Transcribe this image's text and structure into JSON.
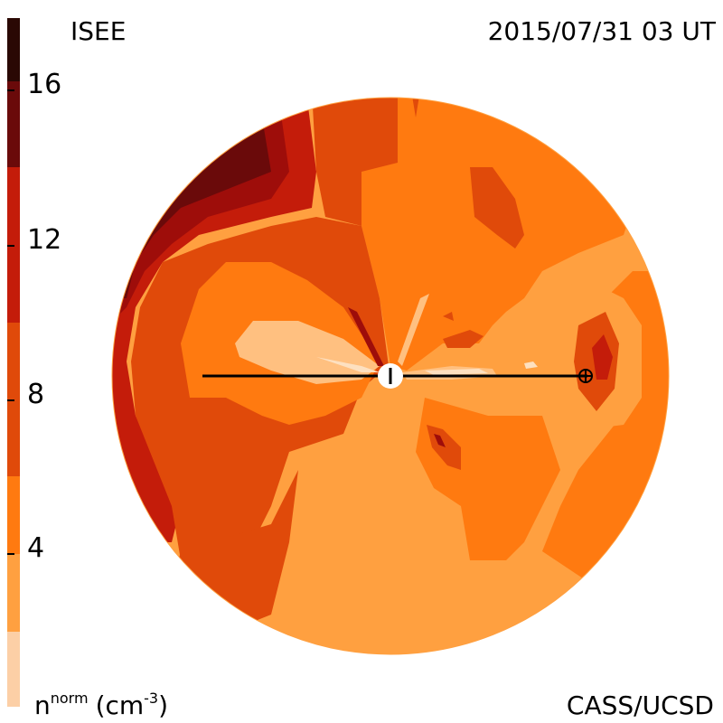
{
  "header": {
    "left_label": "ISEE",
    "right_label": "2015/07/31 03 UT"
  },
  "footer": {
    "unit_base": "n",
    "unit_sup": "norm",
    "unit_tail": "(cm",
    "unit_exp": "-3",
    "unit_close": ")",
    "credit": "CASS/UCSD"
  },
  "colorbar": {
    "tick_labels": [
      "16",
      "12",
      "8",
      "4"
    ],
    "bands": [
      "#2a0804",
      "#6a0a0a",
      "#9e0d0a",
      "#c41c0a",
      "#e04a0a",
      "#ff7a10",
      "#ffa040",
      "#fccfa6"
    ]
  },
  "colors": {
    "background": "#ffffff",
    "level_1": "#ffa040",
    "level_2": "#ff7a10",
    "level_3": "#e04a0a",
    "level_4": "#c41c0a",
    "level_5": "#9e0d0a",
    "level_6": "#6a0a0a",
    "light": "#ffc080",
    "pale": "#fde0c0"
  },
  "markers": {
    "sun_icon": "sun-marker",
    "earth_icon": "earth-marker",
    "sun_earth_line": "sun-earth-line"
  }
}
